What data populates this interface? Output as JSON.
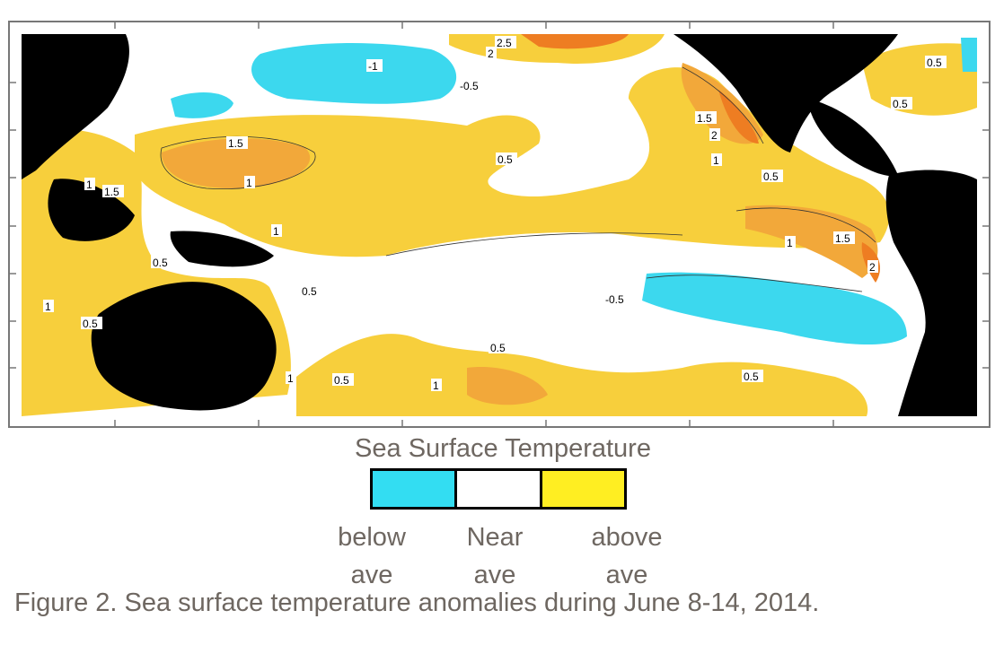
{
  "map": {
    "colors": {
      "below": "#3cd8ee",
      "near": "#ffffff",
      "above": "#f7cf3c",
      "above_strong": "#f2a83a",
      "above_max": "#ee7d22",
      "land": "#000000",
      "frame": "#777777"
    },
    "contour_labels": [
      "2.5",
      "2",
      "-1",
      "-0.5",
      "1.5",
      "2",
      "1.5",
      "1",
      "0.5",
      "0.5",
      "1",
      "1.5",
      "1",
      "0.5",
      "1",
      "1.5",
      "2",
      "0.5",
      "0.5",
      "-0.5",
      "1",
      "0.5",
      "0.5",
      "1",
      "0.5",
      "1",
      "0.5",
      "1",
      "0.5"
    ]
  },
  "legend": {
    "title": "Sea Surface Temperature",
    "items": [
      {
        "line1": "below",
        "line2": "ave",
        "color": "#33ddf2"
      },
      {
        "line1": "Near",
        "line2": "ave",
        "color": "#ffffff"
      },
      {
        "line1": "above",
        "line2": "ave",
        "color": "#ffee22"
      }
    ]
  },
  "caption": "Figure 2. Sea surface temperature anomalies during June 8-14, 2014."
}
